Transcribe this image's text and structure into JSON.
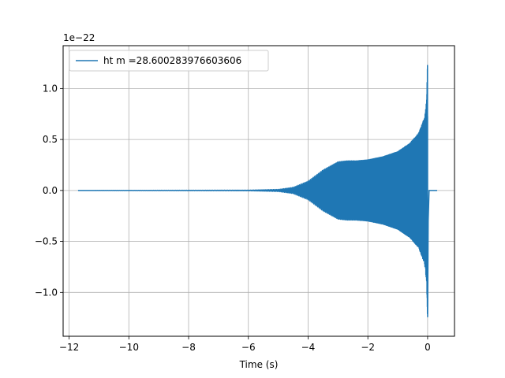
{
  "chart_data": {
    "type": "line",
    "title": "",
    "xlabel": "Time (s)",
    "ylabel": "",
    "offset_label": "1e−22",
    "xlim": [
      -12.2,
      0.9
    ],
    "ylim": [
      -1.43,
      1.42
    ],
    "grid": true,
    "legend_position": "upper-left",
    "xticks": [
      {
        "value": -12,
        "label": "−12"
      },
      {
        "value": -10,
        "label": "−10"
      },
      {
        "value": -8,
        "label": "−8"
      },
      {
        "value": -6,
        "label": "−6"
      },
      {
        "value": -4,
        "label": "−4"
      },
      {
        "value": -2,
        "label": "−2"
      },
      {
        "value": 0,
        "label": "0"
      }
    ],
    "yticks": [
      {
        "value": -1.0,
        "label": "−1.0"
      },
      {
        "value": -0.5,
        "label": "−0.5"
      },
      {
        "value": 0.0,
        "label": "0.0"
      },
      {
        "value": 0.5,
        "label": "0.5"
      },
      {
        "value": 1.0,
        "label": "1.0"
      }
    ],
    "series": [
      {
        "name": "ht m =28.600283976603606",
        "color": "#1f77b4",
        "x_start": -11.7,
        "x_end": 0.32,
        "envelope_x": [
          -11.7,
          -6.0,
          -5.0,
          -4.5,
          -4.0,
          -3.5,
          -3.0,
          -2.7,
          -2.4,
          -2.0,
          -1.5,
          -1.0,
          -0.6,
          -0.3,
          -0.1,
          -0.03,
          0.0,
          0.02,
          0.05,
          0.32
        ],
        "envelope_y": [
          0.0,
          0.003,
          0.01,
          0.03,
          0.09,
          0.2,
          0.28,
          0.29,
          0.29,
          0.3,
          0.33,
          0.38,
          0.46,
          0.56,
          0.72,
          0.9,
          1.3,
          0.3,
          0.0,
          0.0
        ]
      }
    ]
  }
}
